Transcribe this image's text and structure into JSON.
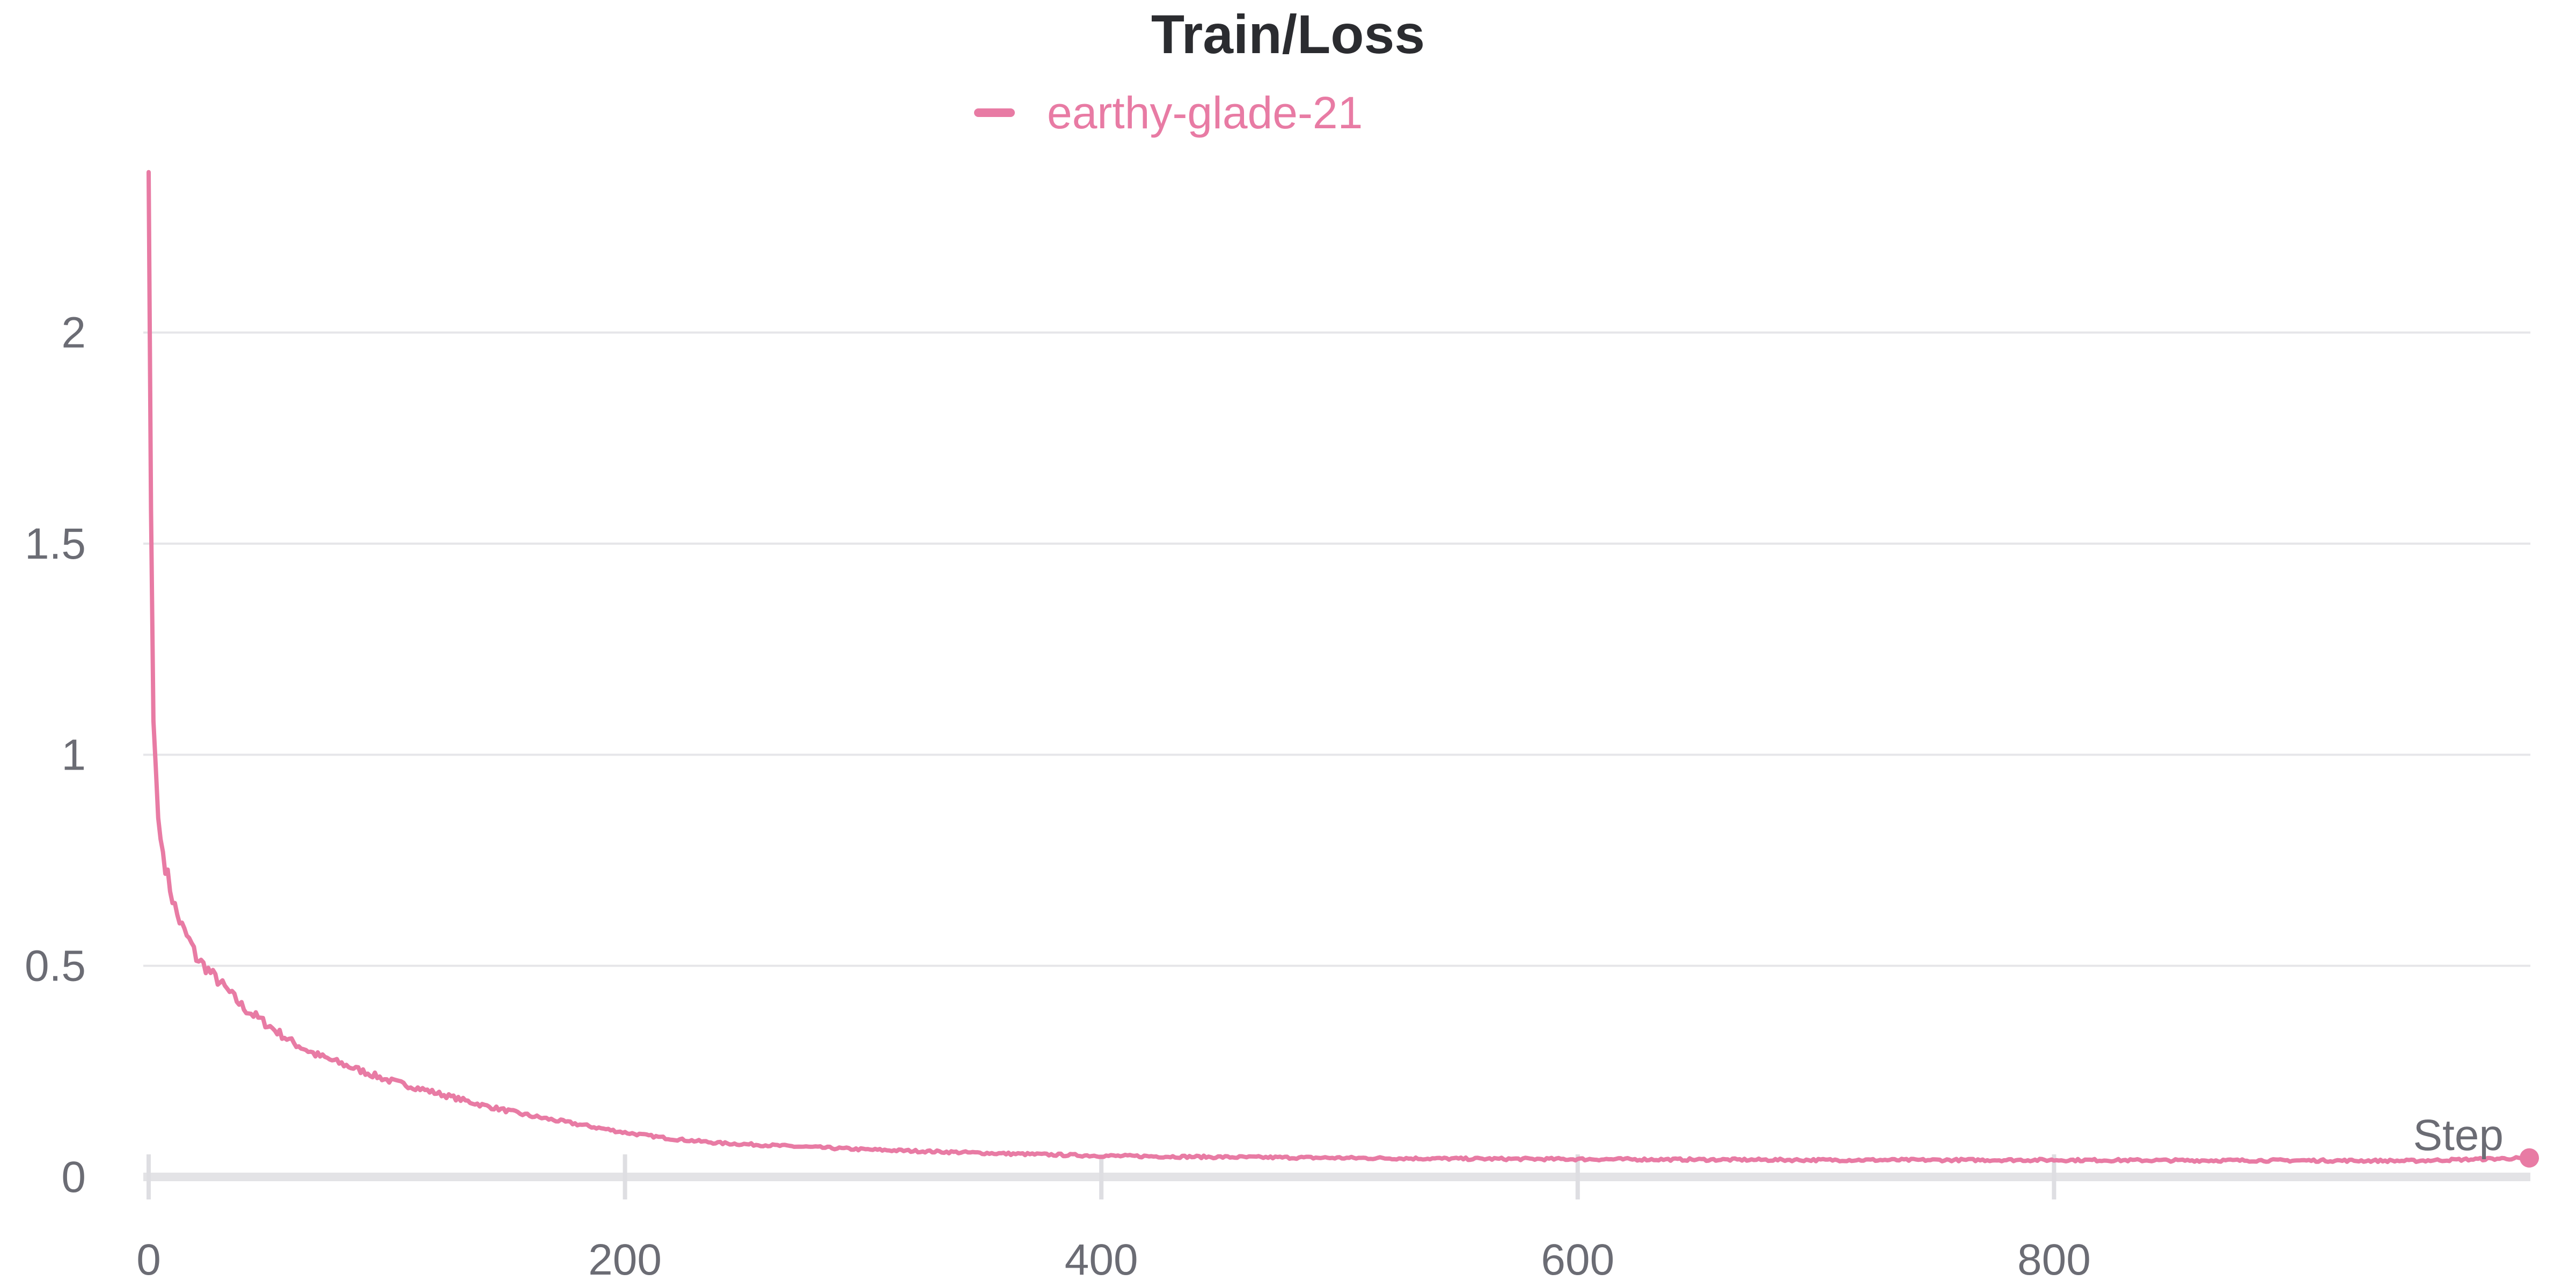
{
  "chart_data": {
    "type": "line",
    "title": "Train/Loss",
    "xlabel": "Step",
    "ylabel": "",
    "xlim": [
      0,
      1000
    ],
    "ylim": [
      0,
      2.4
    ],
    "x_ticks": [
      0,
      200,
      400,
      600,
      800
    ],
    "y_ticks": [
      0,
      0.5,
      1,
      1.5,
      2
    ],
    "y_tick_labels": [
      "0",
      "0.5",
      "1",
      "1.5",
      "2"
    ],
    "grid": true,
    "legend_position": "top-center",
    "series": [
      {
        "name": "earthy-glade-21",
        "color": "#e87ba4",
        "x": [
          0,
          1,
          2,
          3,
          4,
          5,
          6,
          8,
          10,
          12,
          15,
          18,
          20,
          25,
          30,
          35,
          40,
          50,
          60,
          70,
          80,
          90,
          100,
          120,
          140,
          160,
          180,
          200,
          220,
          240,
          260,
          280,
          300,
          330,
          360,
          400,
          450,
          500,
          550,
          600,
          650,
          700,
          750,
          800,
          850,
          900,
          950,
          1000
        ],
        "y": [
          2.38,
          1.58,
          1.08,
          0.97,
          0.85,
          0.8,
          0.77,
          0.71,
          0.66,
          0.62,
          0.58,
          0.55,
          0.52,
          0.49,
          0.46,
          0.43,
          0.4,
          0.36,
          0.32,
          0.29,
          0.27,
          0.25,
          0.23,
          0.2,
          0.17,
          0.145,
          0.125,
          0.105,
          0.09,
          0.08,
          0.075,
          0.07,
          0.065,
          0.06,
          0.055,
          0.05,
          0.047,
          0.045,
          0.043,
          0.042,
          0.041,
          0.04,
          0.04,
          0.04,
          0.039,
          0.039,
          0.038,
          0.045
        ]
      }
    ]
  }
}
